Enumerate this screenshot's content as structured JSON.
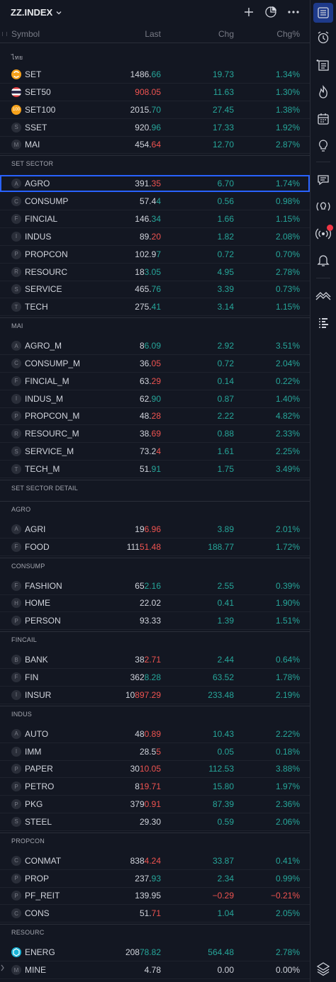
{
  "header": {
    "title": "ZZ.INDEX"
  },
  "columns": {
    "symbol": "Symbol",
    "last": "Last",
    "chg": "Chg",
    "chgp": "Chg%"
  },
  "sections": [
    {
      "label": "ไทย",
      "rows": [
        {
          "icon": "set-logo",
          "sym": "SET",
          "last_a": "1486.",
          "last_b": "66",
          "last_dir": "up",
          "chg": "19.73",
          "pct": "1.34%",
          "dir": "up"
        },
        {
          "icon": "thai-flag",
          "sym": "SET50",
          "last_a": "908.05",
          "last_b": "",
          "last_dir": "dn",
          "chg": "11.63",
          "pct": "1.30%",
          "dir": "up",
          "last_all_color": "dn"
        },
        {
          "icon": "set100-logo",
          "sym": "SET100",
          "last_a": "2015.",
          "last_b": "70",
          "last_dir": "up",
          "chg": "27.45",
          "pct": "1.38%",
          "dir": "up"
        },
        {
          "icon": "S",
          "sym": "SSET",
          "last_a": "920.",
          "last_b": "96",
          "last_dir": "up",
          "chg": "17.33",
          "pct": "1.92%",
          "dir": "up"
        },
        {
          "icon": "M",
          "sym": "MAI",
          "last_a": "454.",
          "last_b": "64",
          "last_dir": "dn",
          "chg": "12.70",
          "pct": "2.87%",
          "dir": "up"
        }
      ]
    },
    {
      "label": "SET SECTOR",
      "rows": [
        {
          "icon": "A",
          "sym": "AGRO",
          "last_a": "391.",
          "last_b": "35",
          "last_dir": "dn",
          "chg": "6.70",
          "pct": "1.74%",
          "dir": "up",
          "selected": true
        },
        {
          "icon": "C",
          "sym": "CONSUMP",
          "last_a": "57.4",
          "last_b": "4",
          "last_dir": "up",
          "chg": "0.56",
          "pct": "0.98%",
          "dir": "up"
        },
        {
          "icon": "F",
          "sym": "FINCIAL",
          "last_a": "146.",
          "last_b": "34",
          "last_dir": "up",
          "chg": "1.66",
          "pct": "1.15%",
          "dir": "up"
        },
        {
          "icon": "I",
          "sym": "INDUS",
          "last_a": "89.",
          "last_b": "20",
          "last_dir": "dn",
          "chg": "1.82",
          "pct": "2.08%",
          "dir": "up"
        },
        {
          "icon": "P",
          "sym": "PROPCON",
          "last_a": "102.9",
          "last_b": "7",
          "last_dir": "up",
          "chg": "0.72",
          "pct": "0.70%",
          "dir": "up"
        },
        {
          "icon": "R",
          "sym": "RESOURC",
          "last_a": "18",
          "last_b": "3.05",
          "last_dir": "up",
          "chg": "4.95",
          "pct": "2.78%",
          "dir": "up"
        },
        {
          "icon": "S",
          "sym": "SERVICE",
          "last_a": "465.",
          "last_b": "76",
          "last_dir": "up",
          "chg": "3.39",
          "pct": "0.73%",
          "dir": "up"
        },
        {
          "icon": "T",
          "sym": "TECH",
          "last_a": "275.",
          "last_b": "41",
          "last_dir": "up",
          "chg": "3.14",
          "pct": "1.15%",
          "dir": "up"
        }
      ]
    },
    {
      "label": "MAI",
      "rows": [
        {
          "icon": "A",
          "sym": "AGRO_M",
          "last_a": "8",
          "last_b": "6.09",
          "last_dir": "up",
          "chg": "2.92",
          "pct": "3.51%",
          "dir": "up"
        },
        {
          "icon": "C",
          "sym": "CONSUMP_M",
          "last_a": "36.",
          "last_b": "05",
          "last_dir": "dn",
          "chg": "0.72",
          "pct": "2.04%",
          "dir": "up"
        },
        {
          "icon": "F",
          "sym": "FINCIAL_M",
          "last_a": "63.",
          "last_b": "29",
          "last_dir": "dn",
          "chg": "0.14",
          "pct": "0.22%",
          "dir": "up"
        },
        {
          "icon": "I",
          "sym": "INDUS_M",
          "last_a": "62.",
          "last_b": "90",
          "last_dir": "up",
          "chg": "0.87",
          "pct": "1.40%",
          "dir": "up"
        },
        {
          "icon": "P",
          "sym": "PROPCON_M",
          "last_a": "48.",
          "last_b": "28",
          "last_dir": "dn",
          "chg": "2.22",
          "pct": "4.82%",
          "dir": "up"
        },
        {
          "icon": "R",
          "sym": "RESOURC_M",
          "last_a": "38.",
          "last_b": "69",
          "last_dir": "dn",
          "chg": "0.88",
          "pct": "2.33%",
          "dir": "up"
        },
        {
          "icon": "S",
          "sym": "SERVICE_M",
          "last_a": "73.2",
          "last_b": "4",
          "last_dir": "dn",
          "chg": "1.61",
          "pct": "2.25%",
          "dir": "up"
        },
        {
          "icon": "T",
          "sym": "TECH_M",
          "last_a": "51.",
          "last_b": "91",
          "last_dir": "up",
          "chg": "1.75",
          "pct": "3.49%",
          "dir": "up"
        }
      ]
    },
    {
      "label": "SET SECTOR DETAIL",
      "rows": []
    },
    {
      "label": "AGRO",
      "rows": [
        {
          "icon": "A",
          "sym": "AGRI",
          "last_a": "19",
          "last_b": "6.96",
          "last_dir": "dn",
          "chg": "3.89",
          "pct": "2.01%",
          "dir": "up"
        },
        {
          "icon": "F",
          "sym": "FOOD",
          "last_a": "111",
          "last_b": "51.48",
          "last_dir": "dn",
          "chg": "188.77",
          "pct": "1.72%",
          "dir": "up"
        }
      ]
    },
    {
      "label": "CONSUMP",
      "rows": [
        {
          "icon": "F",
          "sym": "FASHION",
          "last_a": "65",
          "last_b": "2.16",
          "last_dir": "up",
          "chg": "2.55",
          "pct": "0.39%",
          "dir": "up"
        },
        {
          "icon": "H",
          "sym": "HOME",
          "last_a": "22.02",
          "last_b": "",
          "last_dir": "flat",
          "chg": "0.41",
          "pct": "1.90%",
          "dir": "up"
        },
        {
          "icon": "P",
          "sym": "PERSON",
          "last_a": "93.33",
          "last_b": "",
          "last_dir": "flat",
          "chg": "1.39",
          "pct": "1.51%",
          "dir": "up"
        }
      ]
    },
    {
      "label": "FINCAIL",
      "rows": [
        {
          "icon": "B",
          "sym": "BANK",
          "last_a": "38",
          "last_b": "2.71",
          "last_dir": "dn",
          "chg": "2.44",
          "pct": "0.64%",
          "dir": "up"
        },
        {
          "icon": "F",
          "sym": "FIN",
          "last_a": "362",
          "last_b": "8.28",
          "last_dir": "up",
          "chg": "63.52",
          "pct": "1.78%",
          "dir": "up"
        },
        {
          "icon": "I",
          "sym": "INSUR",
          "last_a": "10",
          "last_b": "897.29",
          "last_dir": "dn",
          "chg": "233.48",
          "pct": "2.19%",
          "dir": "up"
        }
      ]
    },
    {
      "label": "INDUS",
      "rows": [
        {
          "icon": "A",
          "sym": "AUTO",
          "last_a": "48",
          "last_b": "0.89",
          "last_dir": "dn",
          "chg": "10.43",
          "pct": "2.22%",
          "dir": "up"
        },
        {
          "icon": "I",
          "sym": "IMM",
          "last_a": "28.5",
          "last_b": "5",
          "last_dir": "dn",
          "chg": "0.05",
          "pct": "0.18%",
          "dir": "up"
        },
        {
          "icon": "P",
          "sym": "PAPER",
          "last_a": "30",
          "last_b": "10.05",
          "last_dir": "dn",
          "chg": "112.53",
          "pct": "3.88%",
          "dir": "up"
        },
        {
          "icon": "P",
          "sym": "PETRO",
          "last_a": "8",
          "last_b": "19.71",
          "last_dir": "dn",
          "chg": "15.80",
          "pct": "1.97%",
          "dir": "up"
        },
        {
          "icon": "P",
          "sym": "PKG",
          "last_a": "379",
          "last_b": "0.91",
          "last_dir": "dn",
          "chg": "87.39",
          "pct": "2.36%",
          "dir": "up"
        },
        {
          "icon": "S",
          "sym": "STEEL",
          "last_a": "29.30",
          "last_b": "",
          "last_dir": "flat",
          "chg": "0.59",
          "pct": "2.06%",
          "dir": "up"
        }
      ]
    },
    {
      "label": "PROPCON",
      "rows": [
        {
          "icon": "C",
          "sym": "CONMAT",
          "last_a": "838",
          "last_b": "4.24",
          "last_dir": "dn",
          "chg": "33.87",
          "pct": "0.41%",
          "dir": "up"
        },
        {
          "icon": "P",
          "sym": "PROP",
          "last_a": "237.",
          "last_b": "93",
          "last_dir": "up",
          "chg": "2.34",
          "pct": "0.99%",
          "dir": "up"
        },
        {
          "icon": "P",
          "sym": "PF_REIT",
          "last_a": "139.95",
          "last_b": "",
          "last_dir": "flat",
          "chg": "−0.29",
          "pct": "−0.21%",
          "dir": "dn"
        },
        {
          "icon": "C",
          "sym": "CONS",
          "last_a": "51.",
          "last_b": "71",
          "last_dir": "dn",
          "chg": "1.04",
          "pct": "2.05%",
          "dir": "up"
        }
      ]
    },
    {
      "label": "RESOURC",
      "rows": [
        {
          "icon": "energ-logo",
          "sym": "ENERG",
          "last_a": "208",
          "last_b": "78.82",
          "last_dir": "up",
          "chg": "564.48",
          "pct": "2.78%",
          "dir": "up"
        },
        {
          "icon": "M",
          "sym": "MINE",
          "last_a": "4.78",
          "last_b": "",
          "last_dir": "flat",
          "chg": "0.00",
          "pct": "0.00%",
          "dir": "flat"
        }
      ]
    }
  ],
  "colors": {
    "up": "#26a69a",
    "down": "#ef5350",
    "accent": "#2962ff",
    "background": "#131722"
  },
  "right_toolbar": [
    "watchlist-icon",
    "alarm-clock-icon",
    "news-list-icon",
    "hotlist-flame-icon",
    "calendar-icon",
    "ideas-lightbulb-icon",
    "chat-icon",
    "streams-icon",
    "live-broadcast-icon",
    "notifications-bell-icon",
    "chart-trend-icon",
    "dom-icon",
    "layers-icon"
  ]
}
